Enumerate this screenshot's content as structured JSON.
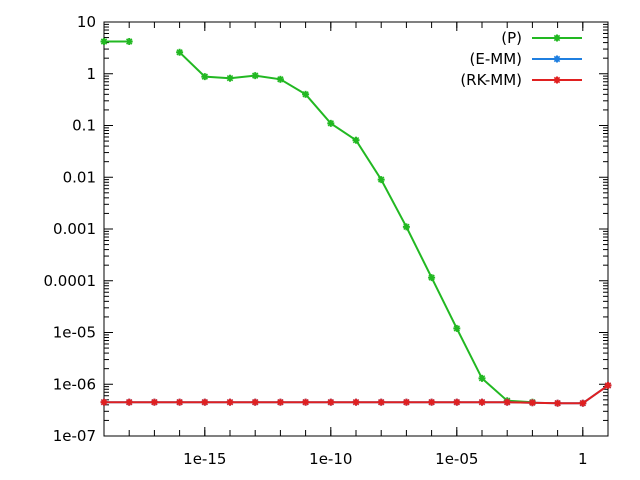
{
  "chart_data": {
    "type": "line",
    "title": "",
    "xlabel": "",
    "ylabel": "",
    "x_scale": "log",
    "y_scale": "log",
    "xlim": [
      1e-19,
      10
    ],
    "ylim": [
      1e-07,
      10
    ],
    "x_ticks": [
      {
        "value": 1e-15,
        "label": "1e-15"
      },
      {
        "value": 1e-10,
        "label": "1e-10"
      },
      {
        "value": 1e-05,
        "label": "1e-05"
      },
      {
        "value": 1,
        "label": "1"
      }
    ],
    "y_ticks": [
      {
        "value": 10,
        "label": "10"
      },
      {
        "value": 1,
        "label": "1"
      },
      {
        "value": 0.1,
        "label": "0.1"
      },
      {
        "value": 0.01,
        "label": "0.01"
      },
      {
        "value": 0.001,
        "label": "0.001"
      },
      {
        "value": 0.0001,
        "label": "0.0001"
      },
      {
        "value": 1e-05,
        "label": "1e-05"
      },
      {
        "value": 1e-06,
        "label": "1e-06"
      },
      {
        "value": 1e-07,
        "label": "1e-07"
      }
    ],
    "grid": false,
    "legend": "top-right",
    "series": [
      {
        "name": "(P)",
        "color": "#22b822",
        "points": [
          [
            1e-19,
            4.2
          ],
          [
            1e-18,
            4.2
          ],
          null,
          [
            1e-16,
            2.6
          ],
          [
            1e-15,
            0.88
          ],
          [
            1e-14,
            0.82
          ],
          [
            1e-13,
            0.92
          ],
          [
            1e-12,
            0.78
          ],
          [
            1e-11,
            0.4
          ],
          [
            1e-10,
            0.11
          ],
          [
            1e-09,
            0.052
          ],
          [
            1e-08,
            0.009
          ],
          [
            1e-07,
            0.0011
          ],
          [
            1e-06,
            0.000115
          ],
          [
            1e-05,
            1.2e-05
          ],
          [
            0.0001,
            1.3e-06
          ],
          [
            0.001,
            4.8e-07
          ],
          [
            0.01,
            4.5e-07
          ]
        ]
      },
      {
        "name": "(E-MM)",
        "color": "#1f7fe0",
        "points": [
          [
            1e-19,
            4.5e-07
          ],
          [
            1e-18,
            4.5e-07
          ],
          [
            1e-17,
            4.5e-07
          ],
          [
            1e-16,
            4.5e-07
          ],
          [
            1e-15,
            4.5e-07
          ],
          [
            1e-14,
            4.5e-07
          ],
          [
            1e-13,
            4.5e-07
          ],
          [
            1e-12,
            4.5e-07
          ],
          [
            1e-11,
            4.5e-07
          ],
          [
            1e-10,
            4.5e-07
          ],
          [
            1e-09,
            4.5e-07
          ],
          [
            1e-08,
            4.5e-07
          ],
          [
            1e-07,
            4.5e-07
          ],
          [
            1e-06,
            4.5e-07
          ],
          [
            1e-05,
            4.5e-07
          ],
          [
            0.0001,
            4.5e-07
          ],
          [
            0.001,
            4.5e-07
          ],
          [
            0.01,
            4.4e-07
          ],
          [
            0.1,
            4.3e-07
          ],
          [
            1,
            4.3e-07
          ],
          [
            10,
            9.5e-07
          ]
        ]
      },
      {
        "name": "(RK-MM)",
        "color": "#e02020",
        "points": [
          [
            1e-19,
            4.5e-07
          ],
          [
            1e-18,
            4.5e-07
          ],
          [
            1e-17,
            4.5e-07
          ],
          [
            1e-16,
            4.5e-07
          ],
          [
            1e-15,
            4.5e-07
          ],
          [
            1e-14,
            4.5e-07
          ],
          [
            1e-13,
            4.5e-07
          ],
          [
            1e-12,
            4.5e-07
          ],
          [
            1e-11,
            4.5e-07
          ],
          [
            1e-10,
            4.5e-07
          ],
          [
            1e-09,
            4.5e-07
          ],
          [
            1e-08,
            4.5e-07
          ],
          [
            1e-07,
            4.5e-07
          ],
          [
            1e-06,
            4.5e-07
          ],
          [
            1e-05,
            4.5e-07
          ],
          [
            0.0001,
            4.5e-07
          ],
          [
            0.001,
            4.5e-07
          ],
          [
            0.01,
            4.4e-07
          ],
          [
            0.1,
            4.3e-07
          ],
          [
            1,
            4.3e-07
          ],
          [
            10,
            9.5e-07
          ]
        ]
      }
    ]
  }
}
